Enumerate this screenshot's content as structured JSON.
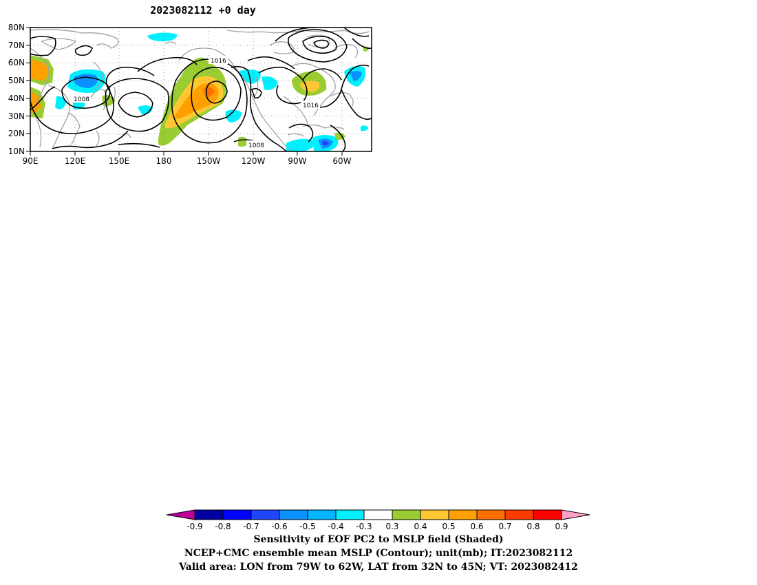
{
  "title": "2023082112 +0 day",
  "map": {
    "lat_labels": [
      "80N",
      "70N",
      "60N",
      "50N",
      "40N",
      "30N",
      "20N",
      "10N"
    ],
    "lon_labels": [
      "90E",
      "120E",
      "150E",
      "180",
      "150W",
      "120W",
      "90W",
      "60W"
    ],
    "contour_labels": [
      "1016",
      "1008",
      "1016",
      "1008"
    ]
  },
  "colorbar": {
    "colors": [
      "#c0009c",
      "#0000a0",
      "#0000ff",
      "#1f46ff",
      "#0a90ff",
      "#00b4ff",
      "#00f0ff",
      "#ffffff",
      "#9acd32",
      "#ffc832",
      "#ffa000",
      "#ff6e00",
      "#ff3c00",
      "#ff0000",
      "#ffa0c8"
    ],
    "ticks": [
      "-0.9",
      "-0.8",
      "-0.7",
      "-0.6",
      "-0.5",
      "-0.4",
      "-0.3",
      "0.3",
      "0.4",
      "0.5",
      "0.6",
      "0.7",
      "0.8",
      "0.9"
    ]
  },
  "captions": [
    "Sensitivity of EOF PC2 to MSLP field (Shaded)",
    "NCEP+CMC ensemble mean MSLP (Contour); unit(mb); IT:2023082112",
    "Valid area: LON from 79W to 62W, LAT from 32N to 45N; VT: 2023082412"
  ]
}
